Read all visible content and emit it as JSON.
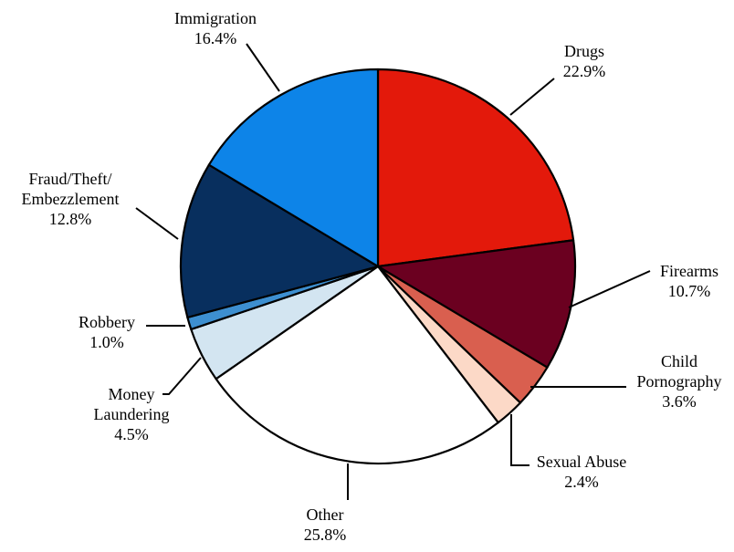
{
  "chart_data": {
    "type": "pie",
    "title": "",
    "start_angle_deg": 0,
    "direction": "clockwise",
    "slices": [
      {
        "label": "Drugs",
        "value": 22.9,
        "value_label": "22.9%",
        "color": "#e3190b"
      },
      {
        "label": "Firearms",
        "value": 10.7,
        "value_label": "10.7%",
        "color": "#6b0020"
      },
      {
        "label": "Child Pornography",
        "label_lines": [
          "Child",
          "Pornography"
        ],
        "value": 3.6,
        "value_label": "3.6%",
        "color": "#d95f4f"
      },
      {
        "label": "Sexual Abuse",
        "value": 2.4,
        "value_label": "2.4%",
        "color": "#fcd9c7"
      },
      {
        "label": "Other",
        "value": 25.8,
        "value_label": "25.8%",
        "color": "#ffffff"
      },
      {
        "label": "Money Laundering",
        "label_lines": [
          "Money",
          "Laundering"
        ],
        "value": 4.5,
        "value_label": "4.5%",
        "color": "#d3e5f1"
      },
      {
        "label": "Robbery",
        "value": 1.0,
        "value_label": "1.0%",
        "color": "#3d8fd0"
      },
      {
        "label": "Fraud/Theft/Embezzlement",
        "label_lines": [
          "Fraud/Theft/",
          "Embezzlement"
        ],
        "value": 12.8,
        "value_label": "12.8%",
        "color": "#082f5e"
      },
      {
        "label": "Immigration",
        "value": 16.4,
        "value_label": "16.4%",
        "color": "#0d84e8"
      }
    ]
  }
}
